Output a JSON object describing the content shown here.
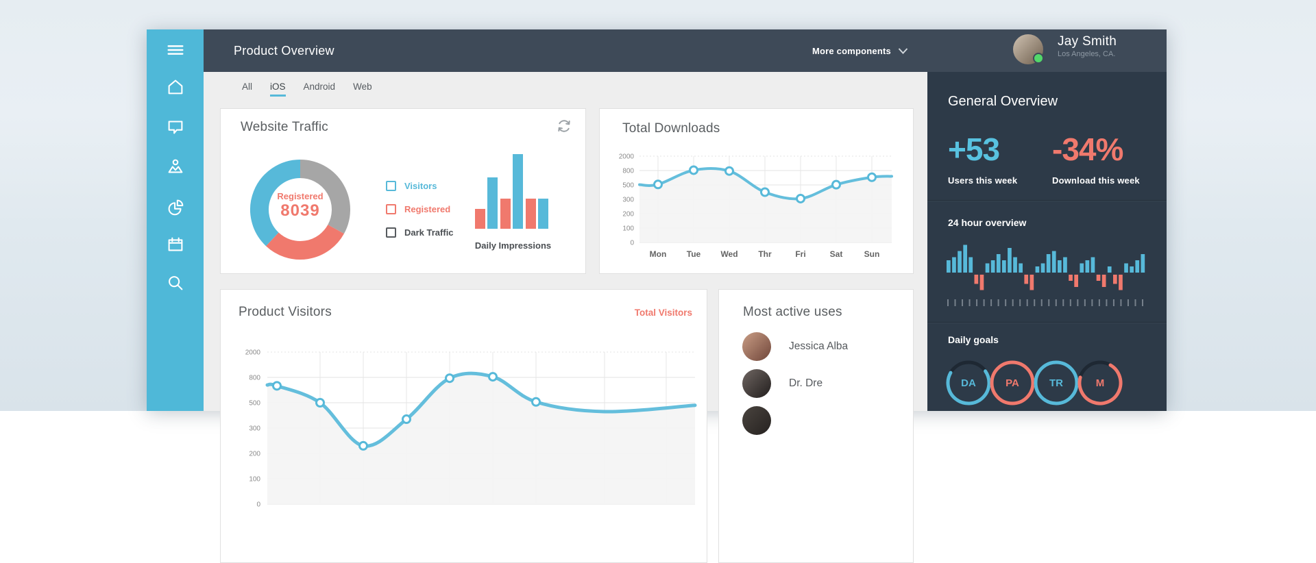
{
  "header": {
    "title": "Product Overview",
    "more_components": "More components",
    "user": {
      "name": "Jay Smith",
      "location": "Los Angeles, CA.",
      "status_color": "#53d86a",
      "avatar": [
        "#cfc2b2",
        "#6f5f4e"
      ]
    }
  },
  "sidebar": {
    "color": "#4fb8d8",
    "icons": [
      "menu",
      "home",
      "chat",
      "users",
      "pie-chart",
      "calendar",
      "search"
    ]
  },
  "tabs": {
    "items": [
      {
        "label": "All",
        "active": false
      },
      {
        "label": "iOS",
        "active": true
      },
      {
        "label": "Android",
        "active": false
      },
      {
        "label": "Web",
        "active": false
      }
    ]
  },
  "website_traffic": {
    "title": "Website Traffic",
    "chart_data": {
      "type": "pie",
      "center_label": "Registered",
      "center_value": "8039",
      "segments": [
        {
          "label": "Dark Traffic",
          "pct": 33,
          "color": "#a6a6a6"
        },
        {
          "label": "Registered",
          "pct": 29,
          "color": "#f0796d"
        },
        {
          "label": "Visitors",
          "pct": 38,
          "color": "#57b9d9"
        }
      ]
    },
    "legend": [
      {
        "label": "Visitors",
        "color": "#57b9d9"
      },
      {
        "label": "Registered",
        "color": "#f0796d"
      },
      {
        "label": "Dark Traffic",
        "color": "#565a5e"
      }
    ],
    "impressions": {
      "label": "Daily Impressions",
      "chart_data": {
        "type": "bar",
        "values": [
          29,
          75,
          44,
          109,
          44,
          44
        ],
        "colors": [
          "#f0796d",
          "#57b9d9",
          "#f0796d",
          "#57b9d9",
          "#f0796d",
          "#57b9d9"
        ]
      }
    }
  },
  "total_downloads": {
    "title": "Total Downloads",
    "chart_data": {
      "type": "line",
      "x_labels": [
        "Mon",
        "Tue",
        "Wed",
        "Thr",
        "Fri",
        "Sat",
        "Sun"
      ],
      "y_ticks": [
        2000,
        800,
        500,
        300,
        200,
        100,
        0
      ],
      "values": [
        510,
        830,
        790,
        400,
        310,
        505,
        660
      ]
    }
  },
  "product_visitors": {
    "title": "Product Visitors",
    "link_label": "Total Visitors",
    "chart_data": {
      "type": "line",
      "y_ticks_visible": [
        2000,
        800,
        500
      ],
      "values": [
        700,
        500,
        230,
        370,
        790,
        830,
        510,
        430,
        480
      ],
      "marker_count": 7
    }
  },
  "most_active": {
    "title": "Most active uses",
    "users": [
      {
        "name": "Jessica Alba",
        "avatar": [
          "#c99d85",
          "#70463a"
        ]
      },
      {
        "name": "Dr. Dre",
        "avatar": [
          "#6f6662",
          "#221e1d"
        ]
      },
      {
        "name": "",
        "avatar": [
          "#4a443f",
          "#262220"
        ]
      }
    ]
  },
  "overview": {
    "title": "General Overview",
    "stats": [
      {
        "value": "+53",
        "label": "Users this week",
        "color": "#58c2e0"
      },
      {
        "value": "-34%",
        "label": "Download this week",
        "color": "#f0796d"
      }
    ],
    "hour_overview": {
      "title": "24 hour overview",
      "chart_data": {
        "type": "bar",
        "values": [
          4,
          5,
          7,
          9,
          5,
          -3,
          -5,
          3,
          4,
          6,
          4,
          8,
          5,
          3,
          -3,
          -5,
          2,
          3,
          6,
          7,
          4,
          5,
          -2,
          -4,
          3,
          4,
          5,
          -2,
          -4,
          2,
          -3,
          -5,
          3,
          2,
          4,
          6
        ],
        "up_color": "#57b9d9",
        "down_color": "#f0796d"
      },
      "tick_count": 28
    },
    "daily_goals": {
      "title": "Daily goals",
      "goals": [
        {
          "label": "DA",
          "color": "#57b9d9",
          "pct": 68
        },
        {
          "label": "PA",
          "color": "#f0796d",
          "pct": 100
        },
        {
          "label": "TR",
          "color": "#57b9d9",
          "pct": 100
        },
        {
          "label": "M",
          "color": "#f0796d",
          "pct": 71
        }
      ]
    }
  },
  "colors": {
    "accent_blue": "#57b9d9",
    "accent_salmon": "#f0796d",
    "sidebar": "#4fb8d8",
    "header_bg": "#3e4a58",
    "panel_bg": "#2d3a48",
    "main_bg": "#eeeeee"
  }
}
